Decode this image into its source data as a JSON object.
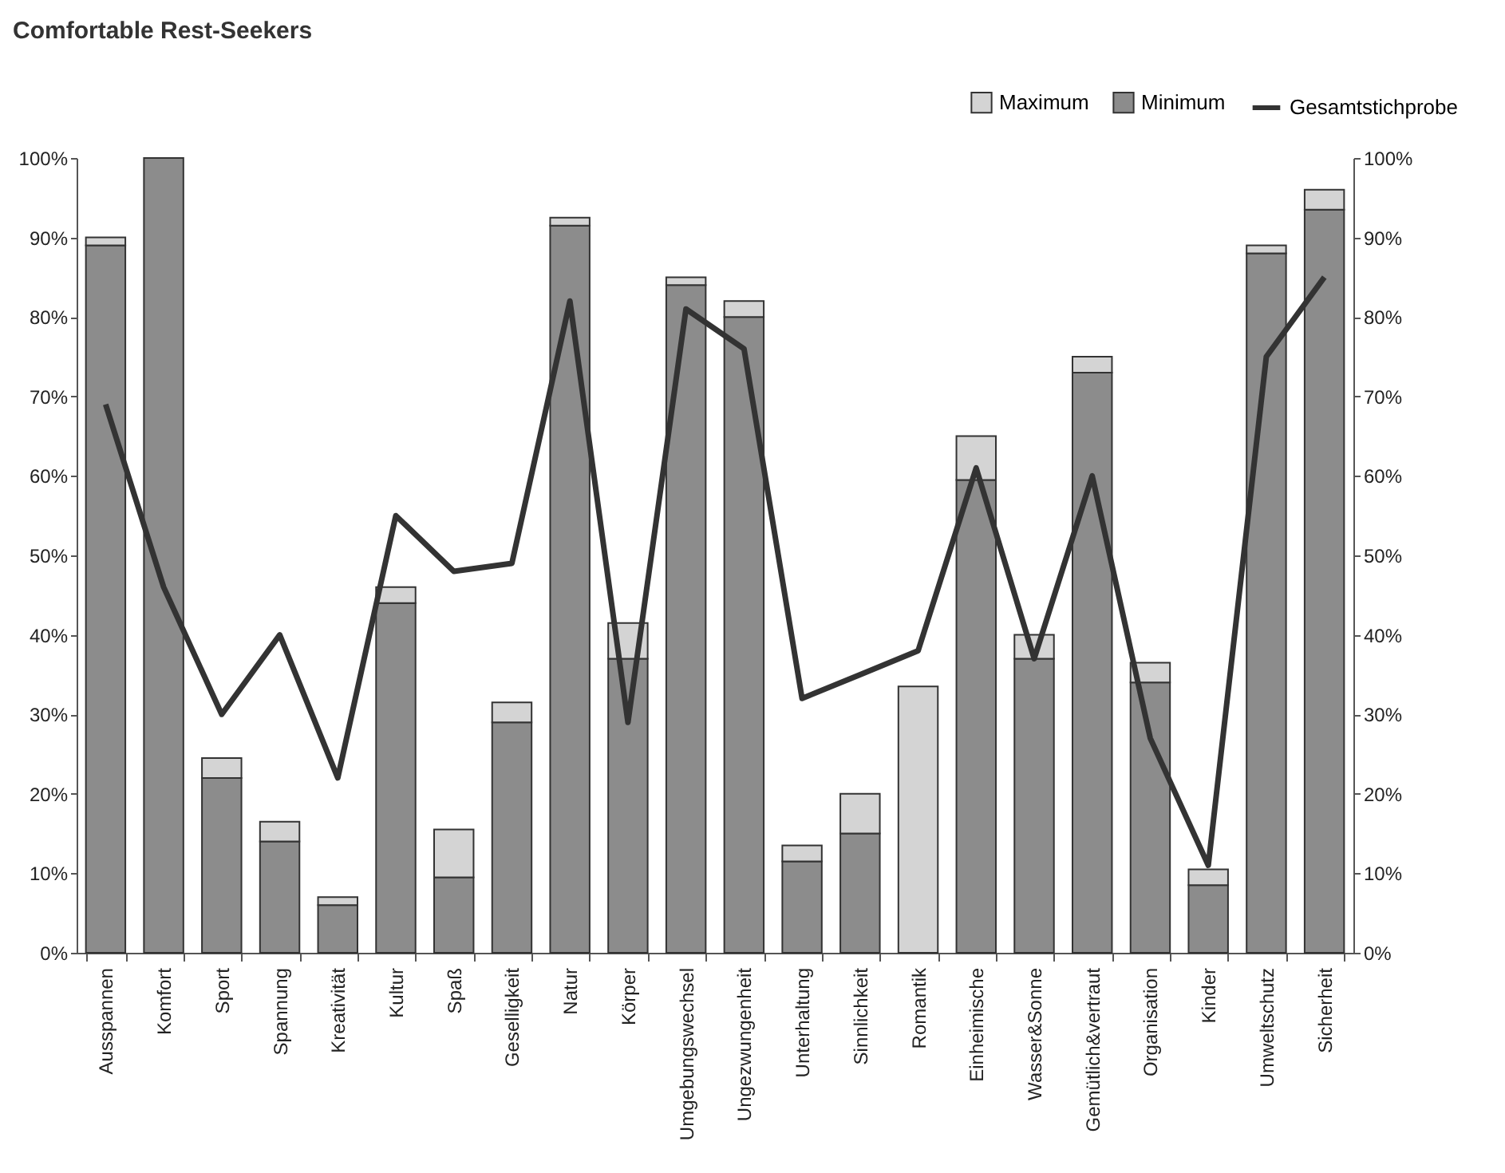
{
  "chart_data": {
    "type": "bar",
    "title": "Comfortable Rest-Seekers",
    "categories": [
      "Ausspannen",
      "Komfort",
      "Sport",
      "Spannung",
      "Kreativität",
      "Kultur",
      "Spaß",
      "Geselligkeit",
      "Natur",
      "Körper",
      "Umgebungswechsel",
      "Ungezwungenheit",
      "Unterhaltung",
      "Sinnlichkeit",
      "Romantik",
      "Einheimische",
      "Wasser&Sonne",
      "Gemütlich&vertraut",
      "Organisation",
      "Kinder",
      "Umweltschutz",
      "Sicherheit"
    ],
    "stacked": true,
    "series": [
      {
        "name": "Minimum",
        "color": "#8c8c8c",
        "values": [
          89,
          100,
          22,
          14,
          6,
          44,
          9.5,
          29,
          91.5,
          37,
          84,
          80,
          11.5,
          15,
          0,
          59.5,
          37,
          73,
          34,
          8.5,
          88,
          93.5
        ]
      },
      {
        "name": "Maximum",
        "color": "#d4d4d4",
        "values": [
          1,
          0,
          2.5,
          2.5,
          1,
          2,
          6,
          2.5,
          1,
          4.5,
          1,
          2,
          2,
          5,
          33.5,
          5.5,
          3,
          2,
          2.5,
          2,
          1,
          2.5
        ]
      },
      {
        "name": "Gesamtstichprobe",
        "type": "line",
        "color": "#333333",
        "values": [
          69,
          46,
          30,
          40,
          22,
          55,
          48,
          49,
          82,
          29,
          81,
          76,
          32,
          35,
          38,
          61,
          37,
          60,
          27,
          11,
          75,
          85
        ]
      }
    ],
    "ylim": [
      0,
      100
    ],
    "yticks": [
      {
        "value": 0,
        "label": "0%"
      },
      {
        "value": 10,
        "label": "10%"
      },
      {
        "value": 20,
        "label": "20%"
      },
      {
        "value": 30,
        "label": "30%"
      },
      {
        "value": 40,
        "label": "40%"
      },
      {
        "value": 50,
        "label": "50%"
      },
      {
        "value": 60,
        "label": "60%"
      },
      {
        "value": 70,
        "label": "70%"
      },
      {
        "value": 80,
        "label": "80%"
      },
      {
        "value": 90,
        "label": "90%"
      },
      {
        "value": 100,
        "label": "100%"
      }
    ],
    "y2lim": [
      0,
      100
    ],
    "y2ticks": [
      {
        "value": 0,
        "label": "0%"
      },
      {
        "value": 10,
        "label": "10%"
      },
      {
        "value": 20,
        "label": "20%"
      },
      {
        "value": 30,
        "label": "30%"
      },
      {
        "value": 40,
        "label": "40%"
      },
      {
        "value": 50,
        "label": "50%"
      },
      {
        "value": 60,
        "label": "60%"
      },
      {
        "value": 70,
        "label": "70%"
      },
      {
        "value": 80,
        "label": "80%"
      },
      {
        "value": 90,
        "label": "90%"
      },
      {
        "value": 100,
        "label": "100%"
      }
    ],
    "grid": false,
    "legend": "top right"
  }
}
